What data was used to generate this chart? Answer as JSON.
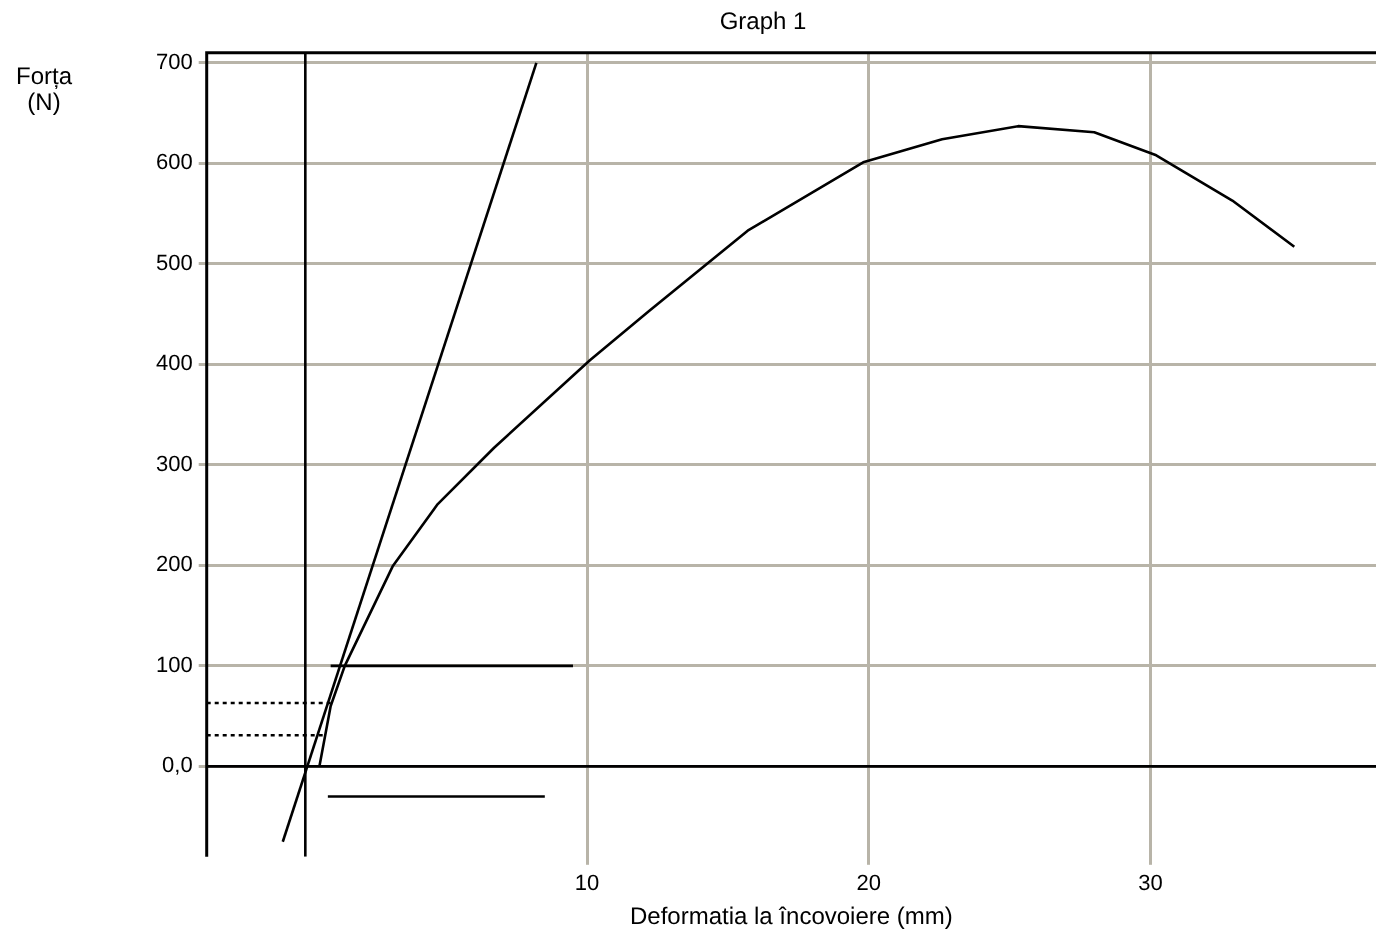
{
  "chart_data": {
    "type": "line",
    "title": "Graph 1",
    "xlabel": "Deformatia la încovoiere (mm)",
    "ylabel": "Forța\n(N)",
    "xlim": [
      -3.5,
      38
    ],
    "ylim": [
      -90,
      710
    ],
    "xticks": [
      10,
      20,
      30
    ],
    "yticks": [
      {
        "value": 0,
        "label": "0,0"
      },
      100,
      200,
      300,
      400,
      500,
      600,
      700
    ],
    "grid": true,
    "legend": false,
    "marker": "none",
    "series": [
      {
        "color": "#000000",
        "x": [
          0.5,
          0.9,
          1.4,
          3.1,
          4.7,
          6.7,
          10.1,
          12.2,
          15.7,
          19.8,
          22.6,
          25.3,
          28.0,
          30.2,
          32.9,
          35.1
        ],
        "values": [
          0,
          60,
          100,
          199,
          261,
          317,
          404,
          453,
          533,
          601,
          624,
          637,
          631,
          608,
          563,
          517
        ]
      },
      {
        "color": "#000000",
        "x": [
          -0.8,
          8.2
        ],
        "values": [
          -75,
          700
        ]
      },
      {
        "color": "#000000",
        "x": [
          0.9,
          9.5
        ],
        "values": [
          100,
          100
        ]
      },
      {
        "color": "#000000",
        "x": [
          0.8,
          8.5
        ],
        "values": [
          -30,
          -30
        ]
      },
      {
        "color": "#000000",
        "x": [
          -3.5,
          0.9
        ],
        "values": [
          63,
          63
        ],
        "line_style": "dotted"
      },
      {
        "color": "#000000",
        "x": [
          -3.5,
          0.7
        ],
        "values": [
          31,
          31
        ],
        "line_style": "dotted"
      },
      {
        "color": "#000000",
        "x": [
          -3.5,
          38
        ],
        "values": [
          0,
          0
        ]
      },
      {
        "color": "#000000",
        "x": [
          0,
          0
        ],
        "values": [
          -90,
          710
        ]
      }
    ]
  }
}
